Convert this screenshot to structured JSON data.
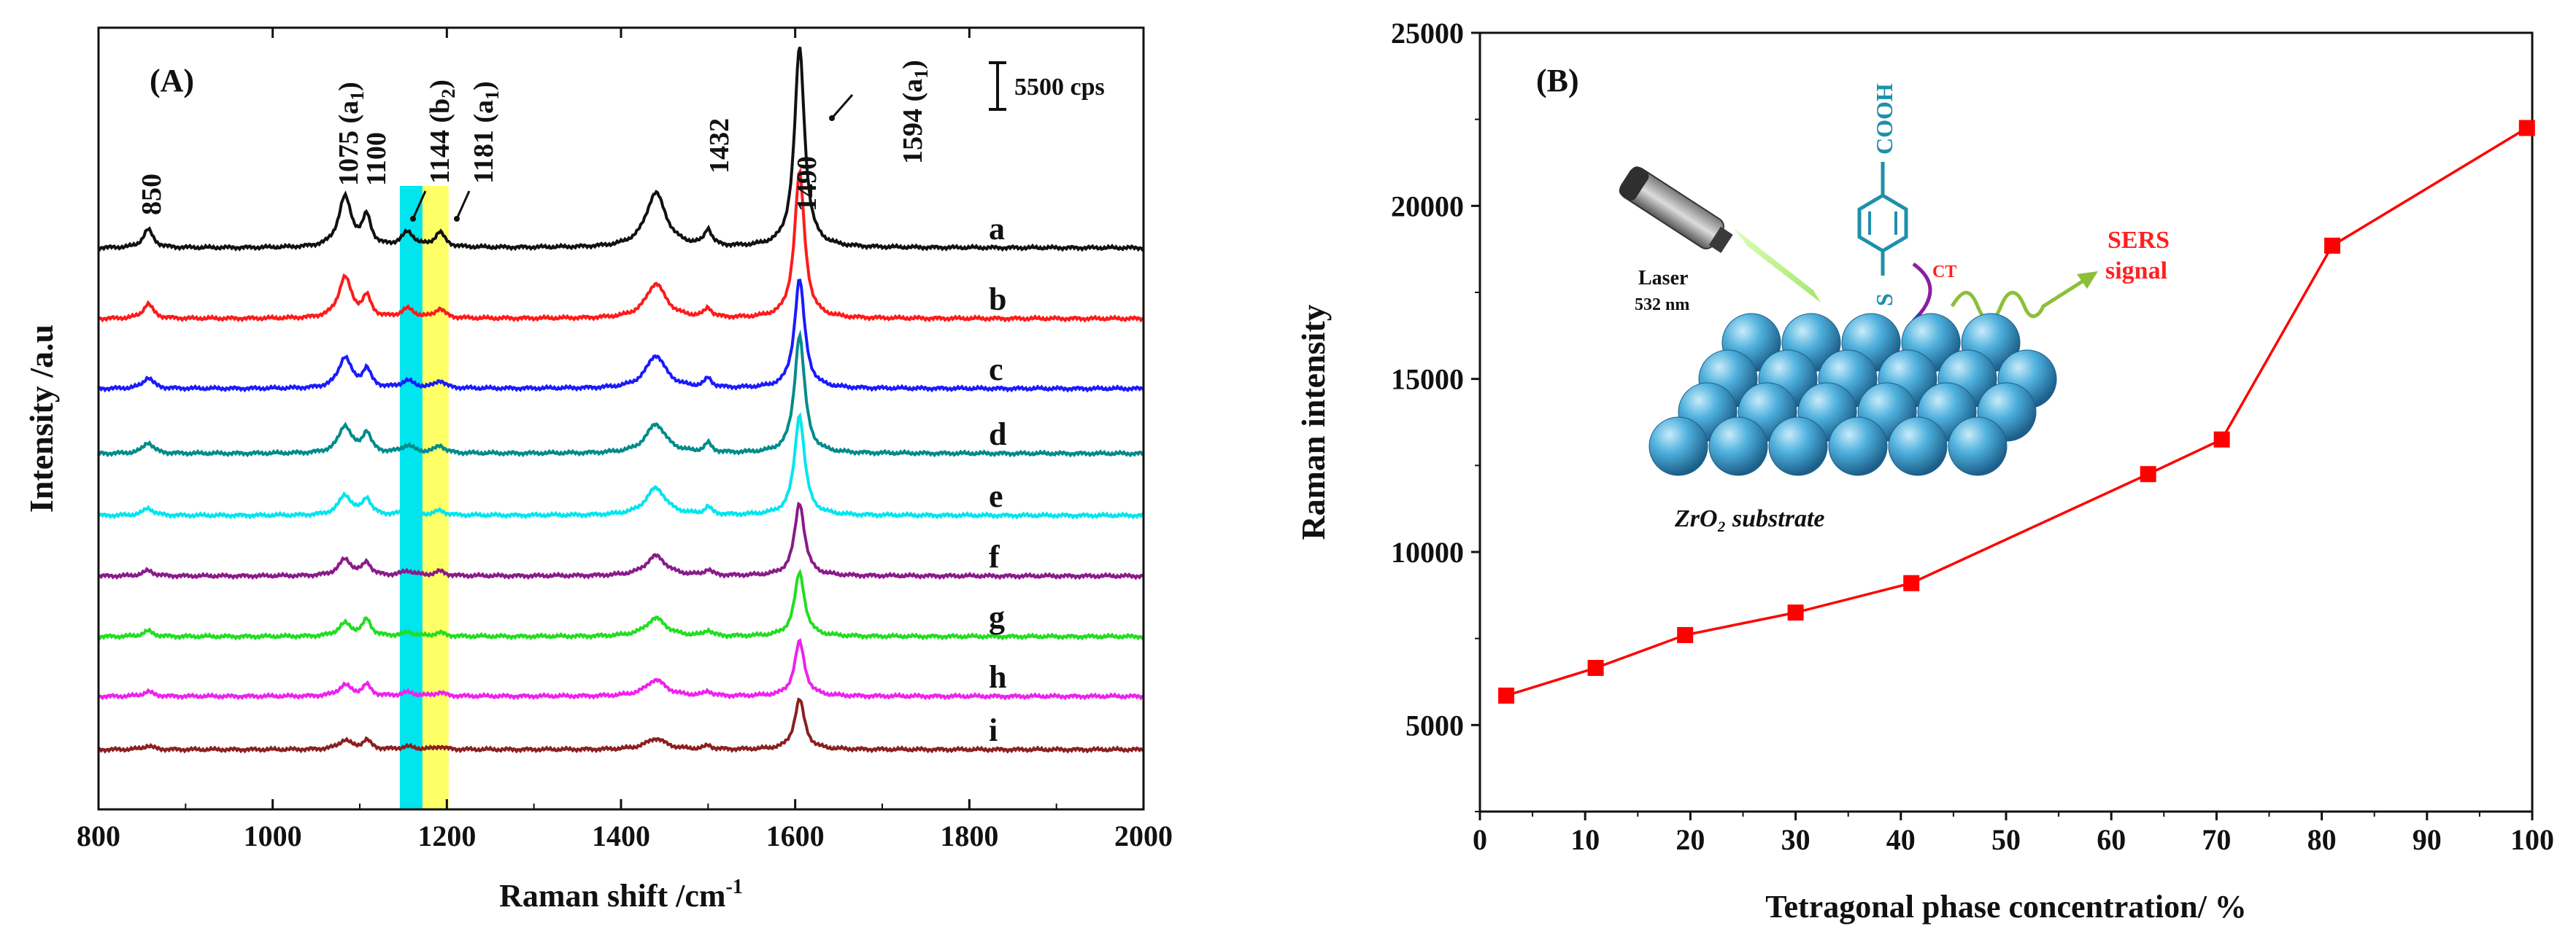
{
  "chart_data": [
    {
      "type": "line",
      "panel_label": "(A)",
      "title": "",
      "xlabel": "Raman shift /cm",
      "xlabel_sup": "-1",
      "ylabel": "Intensity /a.u",
      "xlim": [
        800,
        2000
      ],
      "xticks": [
        "800",
        "1000",
        "1200",
        "1400",
        "1600",
        "1800",
        "2000"
      ],
      "scale_bar_label": "5500 cps",
      "highlight_bands": [
        {
          "from": 1146,
          "to": 1172,
          "color": "#00e5ee"
        },
        {
          "from": 1172,
          "to": 1202,
          "color": "#ffff66"
        }
      ],
      "peak_annotations": [
        {
          "position": 850,
          "label": "850"
        },
        {
          "position": 1075,
          "label": "1075 (a",
          "sub": "1",
          "tail": ")"
        },
        {
          "position": 1100,
          "label": "1100"
        },
        {
          "position": 1144,
          "label": "1144 (b",
          "sub": "2",
          "tail": ")"
        },
        {
          "position": 1181,
          "label": "1181 (a",
          "sub": "1",
          "tail": ")"
        },
        {
          "position": 1432,
          "label": "1432"
        },
        {
          "position": 1490,
          "label": "1490"
        },
        {
          "position": 1594,
          "label": "1594 (a",
          "sub": "1",
          "tail": ")"
        }
      ],
      "peak_positions": [
        857,
        1083,
        1108,
        1155,
        1192,
        1440,
        1500,
        1605
      ],
      "peak_widths": [
        7,
        9,
        6,
        9,
        7,
        14,
        5,
        7
      ],
      "series": [
        {
          "name": "a",
          "color": "#111111",
          "baseline": 0.0,
          "heights": [
            0.2,
            0.55,
            0.32,
            0.16,
            0.16,
            0.6,
            0.18,
            2.2
          ]
        },
        {
          "name": "b",
          "color": "#ff1a1a",
          "baseline": 0.0,
          "heights": [
            0.16,
            0.45,
            0.22,
            0.1,
            0.1,
            0.38,
            0.1,
            1.6
          ]
        },
        {
          "name": "c",
          "color": "#1a1aff",
          "baseline": 0.0,
          "heights": [
            0.12,
            0.34,
            0.2,
            0.08,
            0.08,
            0.36,
            0.1,
            1.2
          ]
        },
        {
          "name": "d",
          "color": "#008b8b",
          "baseline": 0.0,
          "heights": [
            0.12,
            0.3,
            0.22,
            0.08,
            0.08,
            0.32,
            0.1,
            1.3
          ]
        },
        {
          "name": "e",
          "color": "#00e5ee",
          "baseline": 0.0,
          "heights": [
            0.08,
            0.22,
            0.18,
            0.05,
            0.05,
            0.3,
            0.08,
            1.1
          ]
        },
        {
          "name": "f",
          "color": "#8b1a8b",
          "baseline": 0.0,
          "heights": [
            0.06,
            0.18,
            0.14,
            0.05,
            0.05,
            0.22,
            0.06,
            0.8
          ]
        },
        {
          "name": "g",
          "color": "#22dd22",
          "baseline": 0.0,
          "heights": [
            0.06,
            0.14,
            0.18,
            0.04,
            0.04,
            0.2,
            0.06,
            0.7
          ]
        },
        {
          "name": "h",
          "color": "#ee22ee",
          "baseline": 0.0,
          "heights": [
            0.05,
            0.12,
            0.12,
            0.04,
            0.04,
            0.18,
            0.05,
            0.6
          ]
        },
        {
          "name": "i",
          "color": "#8b2020",
          "baseline": 0.0,
          "heights": [
            0.04,
            0.1,
            0.1,
            0.03,
            0.03,
            0.12,
            0.04,
            0.55
          ]
        }
      ]
    },
    {
      "type": "scatter",
      "panel_label": "(B)",
      "title": "",
      "xlabel": "Tetragonal phase concentration/ %",
      "ylabel": "Raman intensity",
      "xlim": [
        0,
        100
      ],
      "ylim": [
        2500,
        25000
      ],
      "xticks": [
        "0",
        "10",
        "20",
        "30",
        "40",
        "50",
        "60",
        "70",
        "80",
        "90",
        "100"
      ],
      "yticks": [
        "5000",
        "10000",
        "15000",
        "20000",
        "25000"
      ],
      "color": "#ff0000",
      "marker": "square",
      "connected": true,
      "x": [
        2.5,
        11,
        19.5,
        30,
        41,
        63.5,
        70.5,
        81,
        99.5
      ],
      "y": [
        5850,
        6650,
        7600,
        8250,
        9100,
        12250,
        13250,
        18850,
        22250
      ]
    }
  ],
  "inset": {
    "laser_label": "Laser",
    "laser_wavelength": "532 nm",
    "molecule_group": "COOH",
    "sulfur_label": "S",
    "ct_label": "CT",
    "signal_line1": "SERS",
    "signal_line2": "signal",
    "substrate_label": "ZrO₂ substrate",
    "colors": {
      "teal": "#1e90aa",
      "red": "#ff2020",
      "green": "#8bbf3a",
      "sphere": "#3ea0d6"
    }
  }
}
